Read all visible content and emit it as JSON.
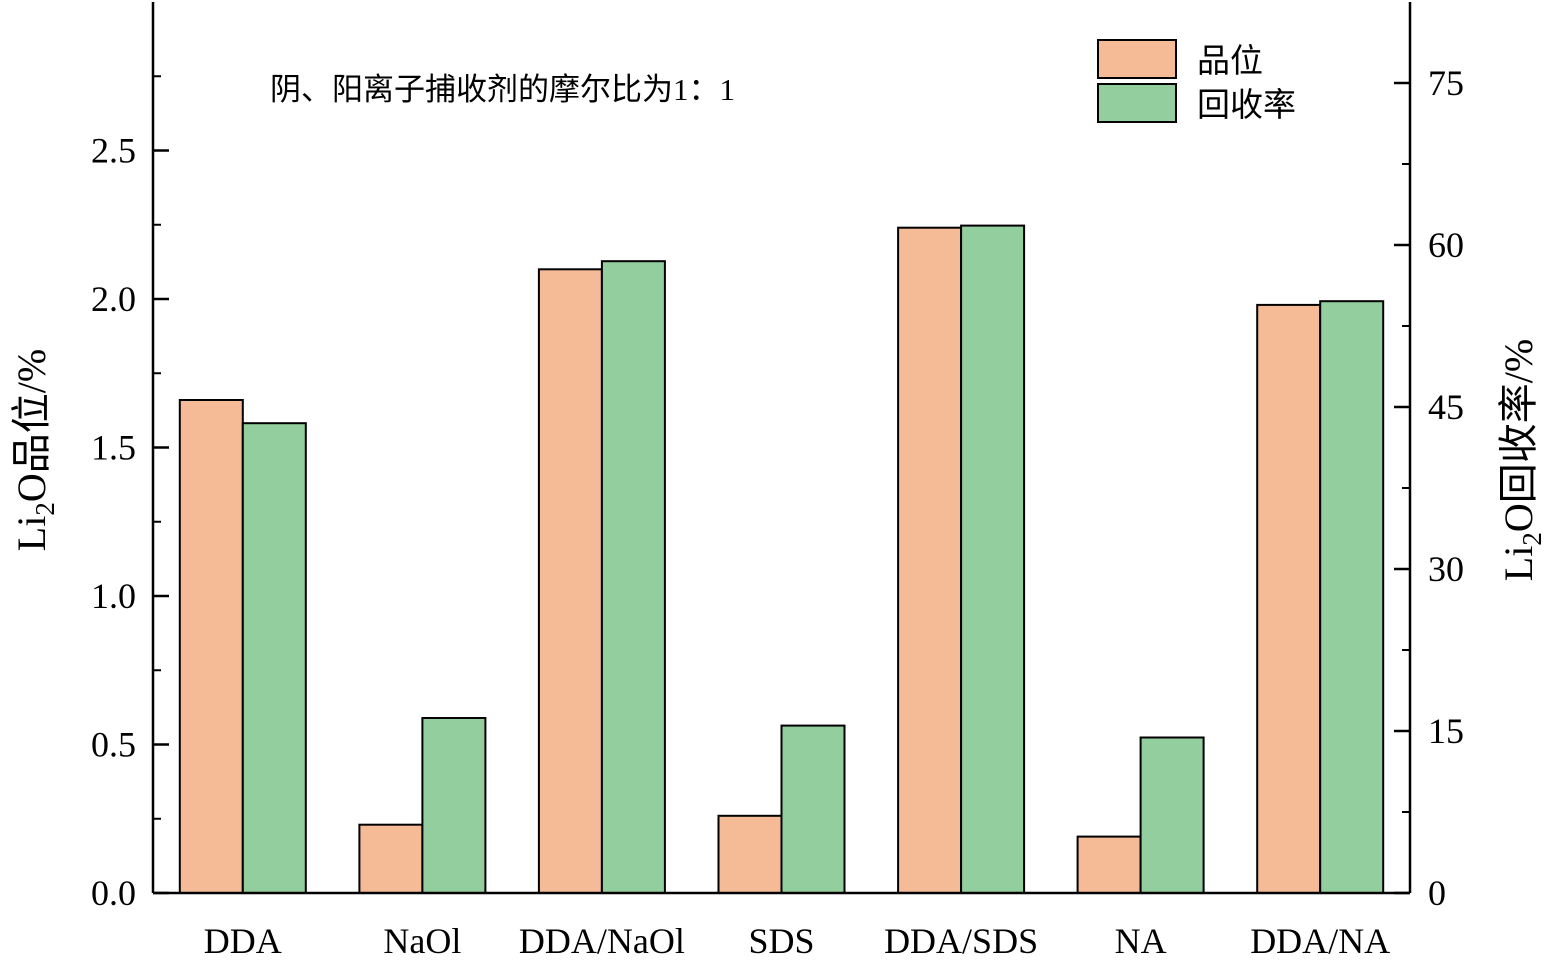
{
  "chart_data": {
    "type": "bar",
    "categories": [
      "DDA",
      "NaOl",
      "DDA/NaOl",
      "SDS",
      "DDA/SDS",
      "NA",
      "DDA/NA"
    ],
    "series": [
      {
        "name": "品位",
        "axis": "left",
        "color": "#F5BB97",
        "values": [
          1.66,
          0.23,
          2.1,
          0.26,
          2.24,
          0.19,
          1.98
        ]
      },
      {
        "name": "回收率",
        "axis": "right",
        "color": "#93CF9E",
        "values": [
          43.5,
          16.2,
          58.5,
          15.5,
          61.8,
          14.4,
          54.8
        ]
      }
    ],
    "annotation": "阴、阳离子捕收剂的摩尔比为1：1",
    "y_left": {
      "label_parts": [
        "Li",
        "2",
        "O品位/%"
      ],
      "ylim": [
        0,
        3.0
      ],
      "ticks": [
        "0.0",
        "0.5",
        "1.0",
        "1.5",
        "2.0",
        "2.5"
      ],
      "tick_values": [
        0,
        0.5,
        1.0,
        1.5,
        2.0,
        2.5
      ]
    },
    "y_right": {
      "label_parts": [
        "Li",
        "2",
        "O回收率/%"
      ],
      "ylim": [
        0,
        82.5
      ],
      "ticks": [
        "0",
        "15",
        "30",
        "45",
        "60",
        "75"
      ],
      "tick_values": [
        0,
        15,
        30,
        45,
        60,
        75
      ]
    },
    "legend_position": "top-right",
    "grid": false
  }
}
